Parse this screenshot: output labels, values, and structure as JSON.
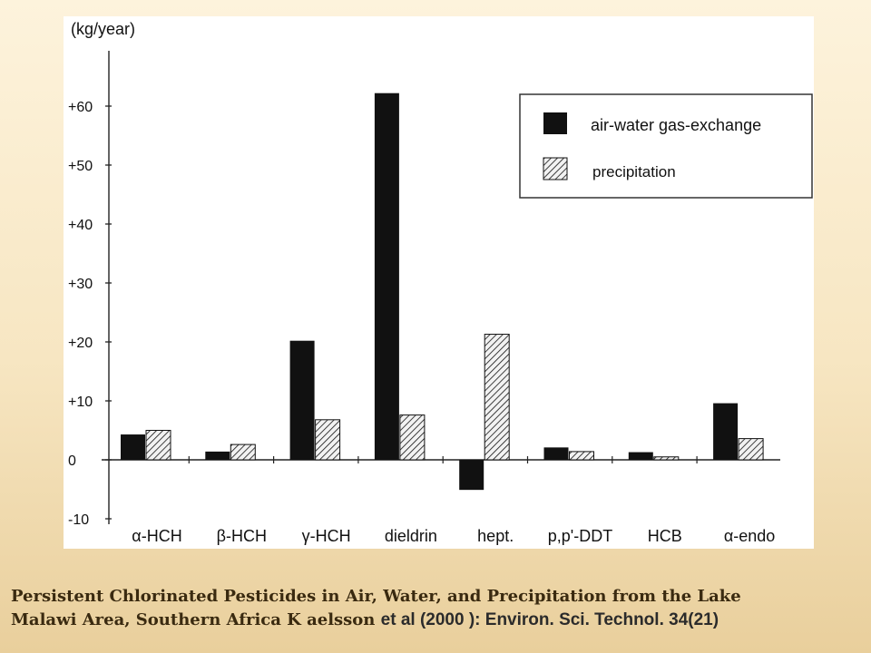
{
  "chart_data": {
    "type": "bar",
    "title": "",
    "xlabel": "",
    "ylabel": "(kg/year)",
    "ylim": [
      -10,
      70
    ],
    "y_ticks": [
      "+60",
      "+50",
      "+40",
      "+30",
      "+20",
      "+10",
      "0",
      "-10"
    ],
    "y_tick_values": [
      60,
      50,
      40,
      30,
      20,
      10,
      0,
      -10
    ],
    "categories": [
      "α-HCH",
      "β-HCH",
      "γ-HCH",
      "dieldrin",
      "hept.",
      "p,p'-DDT",
      "HCB",
      "α-endo"
    ],
    "series": [
      {
        "name": "air-water gas-exchange",
        "fill": "solid",
        "values": [
          4.3,
          1.4,
          20.2,
          62.2,
          -5.1,
          2.1,
          1.3,
          9.6
        ]
      },
      {
        "name": "precipitation",
        "fill": "hatched",
        "values": [
          5.0,
          2.6,
          6.8,
          7.6,
          21.3,
          1.4,
          0.5,
          3.6
        ]
      }
    ],
    "legend_position": "top-right",
    "grid": false,
    "colors": {
      "bar": "#111111",
      "hatch_bg": "#f2f2f2",
      "axis": "#222222"
    }
  },
  "caption": {
    "line1": "Persistent Chlorinated Pesticides in Air, Water, and Precipitation from the Lake",
    "line2_serif": "Malawi Area, Southern Africa K aelsson ",
    "line2_cite": "et al  (2000 ): Environ. Sci. Technol. 34(21)"
  }
}
